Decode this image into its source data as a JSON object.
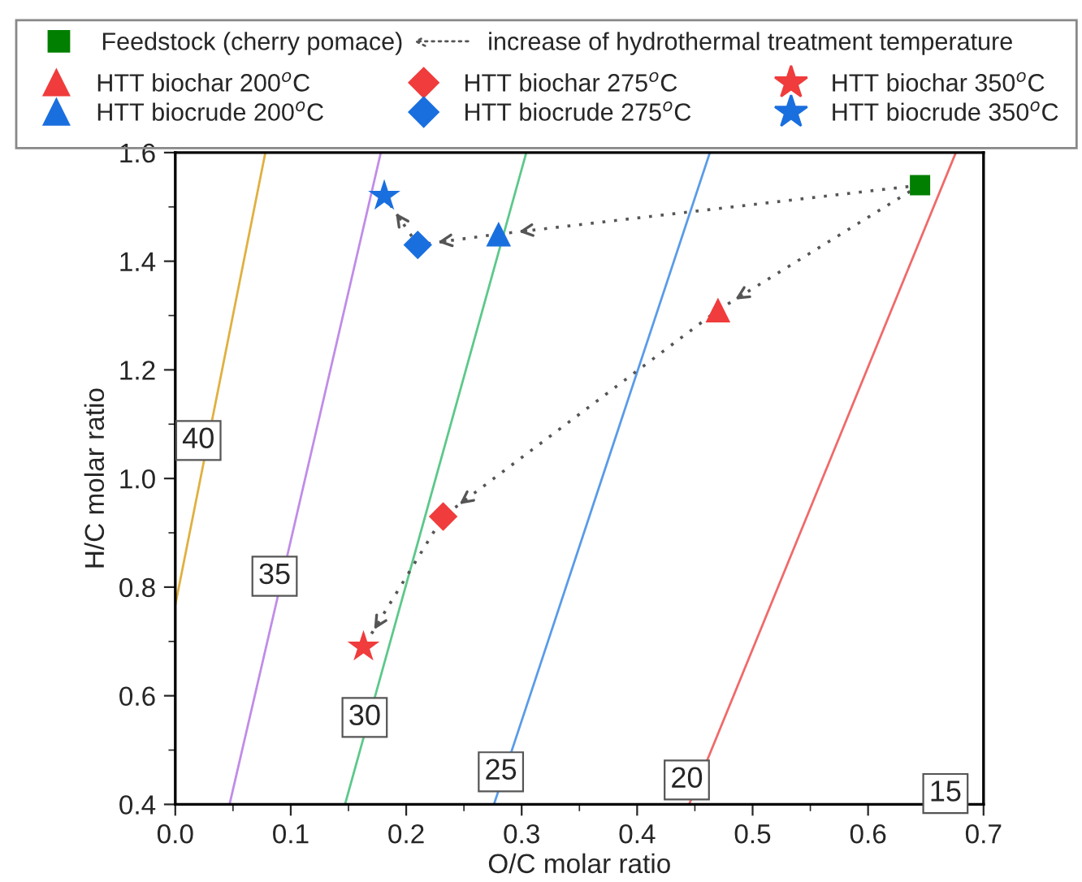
{
  "chart_data": {
    "type": "scatter",
    "xlabel": "O/C molar ratio",
    "ylabel": "H/C molar ratio",
    "xlim": [
      0.0,
      0.7
    ],
    "ylim": [
      0.4,
      1.6
    ],
    "xticks": [
      {
        "value": 0.0,
        "label": "0.0"
      },
      0.1,
      0.2,
      0.3,
      0.4,
      0.5,
      0.6,
      0.7
    ],
    "yticks": [
      0.4,
      0.6,
      0.8,
      {
        "value": 1.0,
        "label": "1.0"
      },
      1.2,
      1.4,
      1.6
    ],
    "grid": false,
    "legend": "top",
    "series": [
      {
        "type": "line",
        "color": "#e0b040",
        "x": [
          0.0,
          0.078
        ],
        "values": [
          0.767,
          1.6
        ]
      },
      {
        "type": "line",
        "color": "#c08ce8",
        "x": [
          0.047,
          0.178
        ],
        "values": [
          0.4,
          1.6
        ]
      },
      {
        "type": "line",
        "color": "#5cc88a",
        "x": [
          0.147,
          0.304
        ],
        "values": [
          0.4,
          1.6
        ]
      },
      {
        "type": "line",
        "color": "#5a9be8",
        "x": [
          0.276,
          0.463
        ],
        "values": [
          0.4,
          1.6
        ]
      },
      {
        "type": "line",
        "color": "#f06a6a",
        "x": [
          0.445,
          0.676
        ],
        "values": [
          0.4,
          1.6
        ]
      },
      {
        "type": "line",
        "color": "#555555",
        "line_style": "dotted",
        "x": [
          0.645,
          0.47,
          0.232,
          0.163
        ],
        "values": [
          1.54,
          1.31,
          0.93,
          0.69
        ]
      },
      {
        "type": "line",
        "color": "#555555",
        "line_style": "dotted",
        "x": [
          0.645,
          0.28,
          0.21,
          0.181
        ],
        "values": [
          1.54,
          1.45,
          1.43,
          1.52
        ]
      },
      {
        "name": "Feedstock (cherry pomace)",
        "color": "#007f00",
        "marker": "square",
        "x": [
          0.645
        ],
        "values": [
          1.54
        ]
      },
      {
        "name": "HTT biochar 200$^{o}$C",
        "color": "#f03c3c",
        "marker": "triangle",
        "x": [
          0.47
        ],
        "values": [
          1.31
        ]
      },
      {
        "name": "HTT biochar 275$^{o}$C",
        "color": "#f03c3c",
        "marker": "diamond",
        "x": [
          0.232
        ],
        "values": [
          0.93
        ]
      },
      {
        "name": "HTT biochar 350$^{o}$C",
        "color": "#f03c3c",
        "marker": "star",
        "x": [
          0.163
        ],
        "values": [
          0.69
        ]
      },
      {
        "name": "HTT biocrude 200$^{o}$C",
        "color": "#1a6fdf",
        "marker": "triangle",
        "x": [
          0.28
        ],
        "values": [
          1.45
        ]
      },
      {
        "name": "HTT biocrude 275$^{o}$C",
        "color": "#1a6fdf",
        "marker": "diamond",
        "x": [
          0.21
        ],
        "values": [
          1.43
        ]
      },
      {
        "name": "HTT biocrude 350$^{o}$C",
        "color": "#1a6fdf",
        "marker": "star",
        "x": [
          0.181
        ],
        "values": [
          1.52
        ]
      }
    ],
    "annotations": [
      "increase of hydrothermal treatment temperature",
      {
        "text": "40",
        "x": 0.02,
        "y": 1.07
      },
      {
        "text": "35",
        "x": 0.086,
        "y": 0.82
      },
      {
        "text": "30",
        "x": 0.164,
        "y": 0.56
      },
      {
        "text": "25",
        "x": 0.282,
        "y": 0.46
      },
      {
        "text": "20",
        "x": 0.443,
        "y": 0.445
      },
      {
        "text": "15",
        "x": 0.667,
        "y": 0.42
      }
    ]
  }
}
